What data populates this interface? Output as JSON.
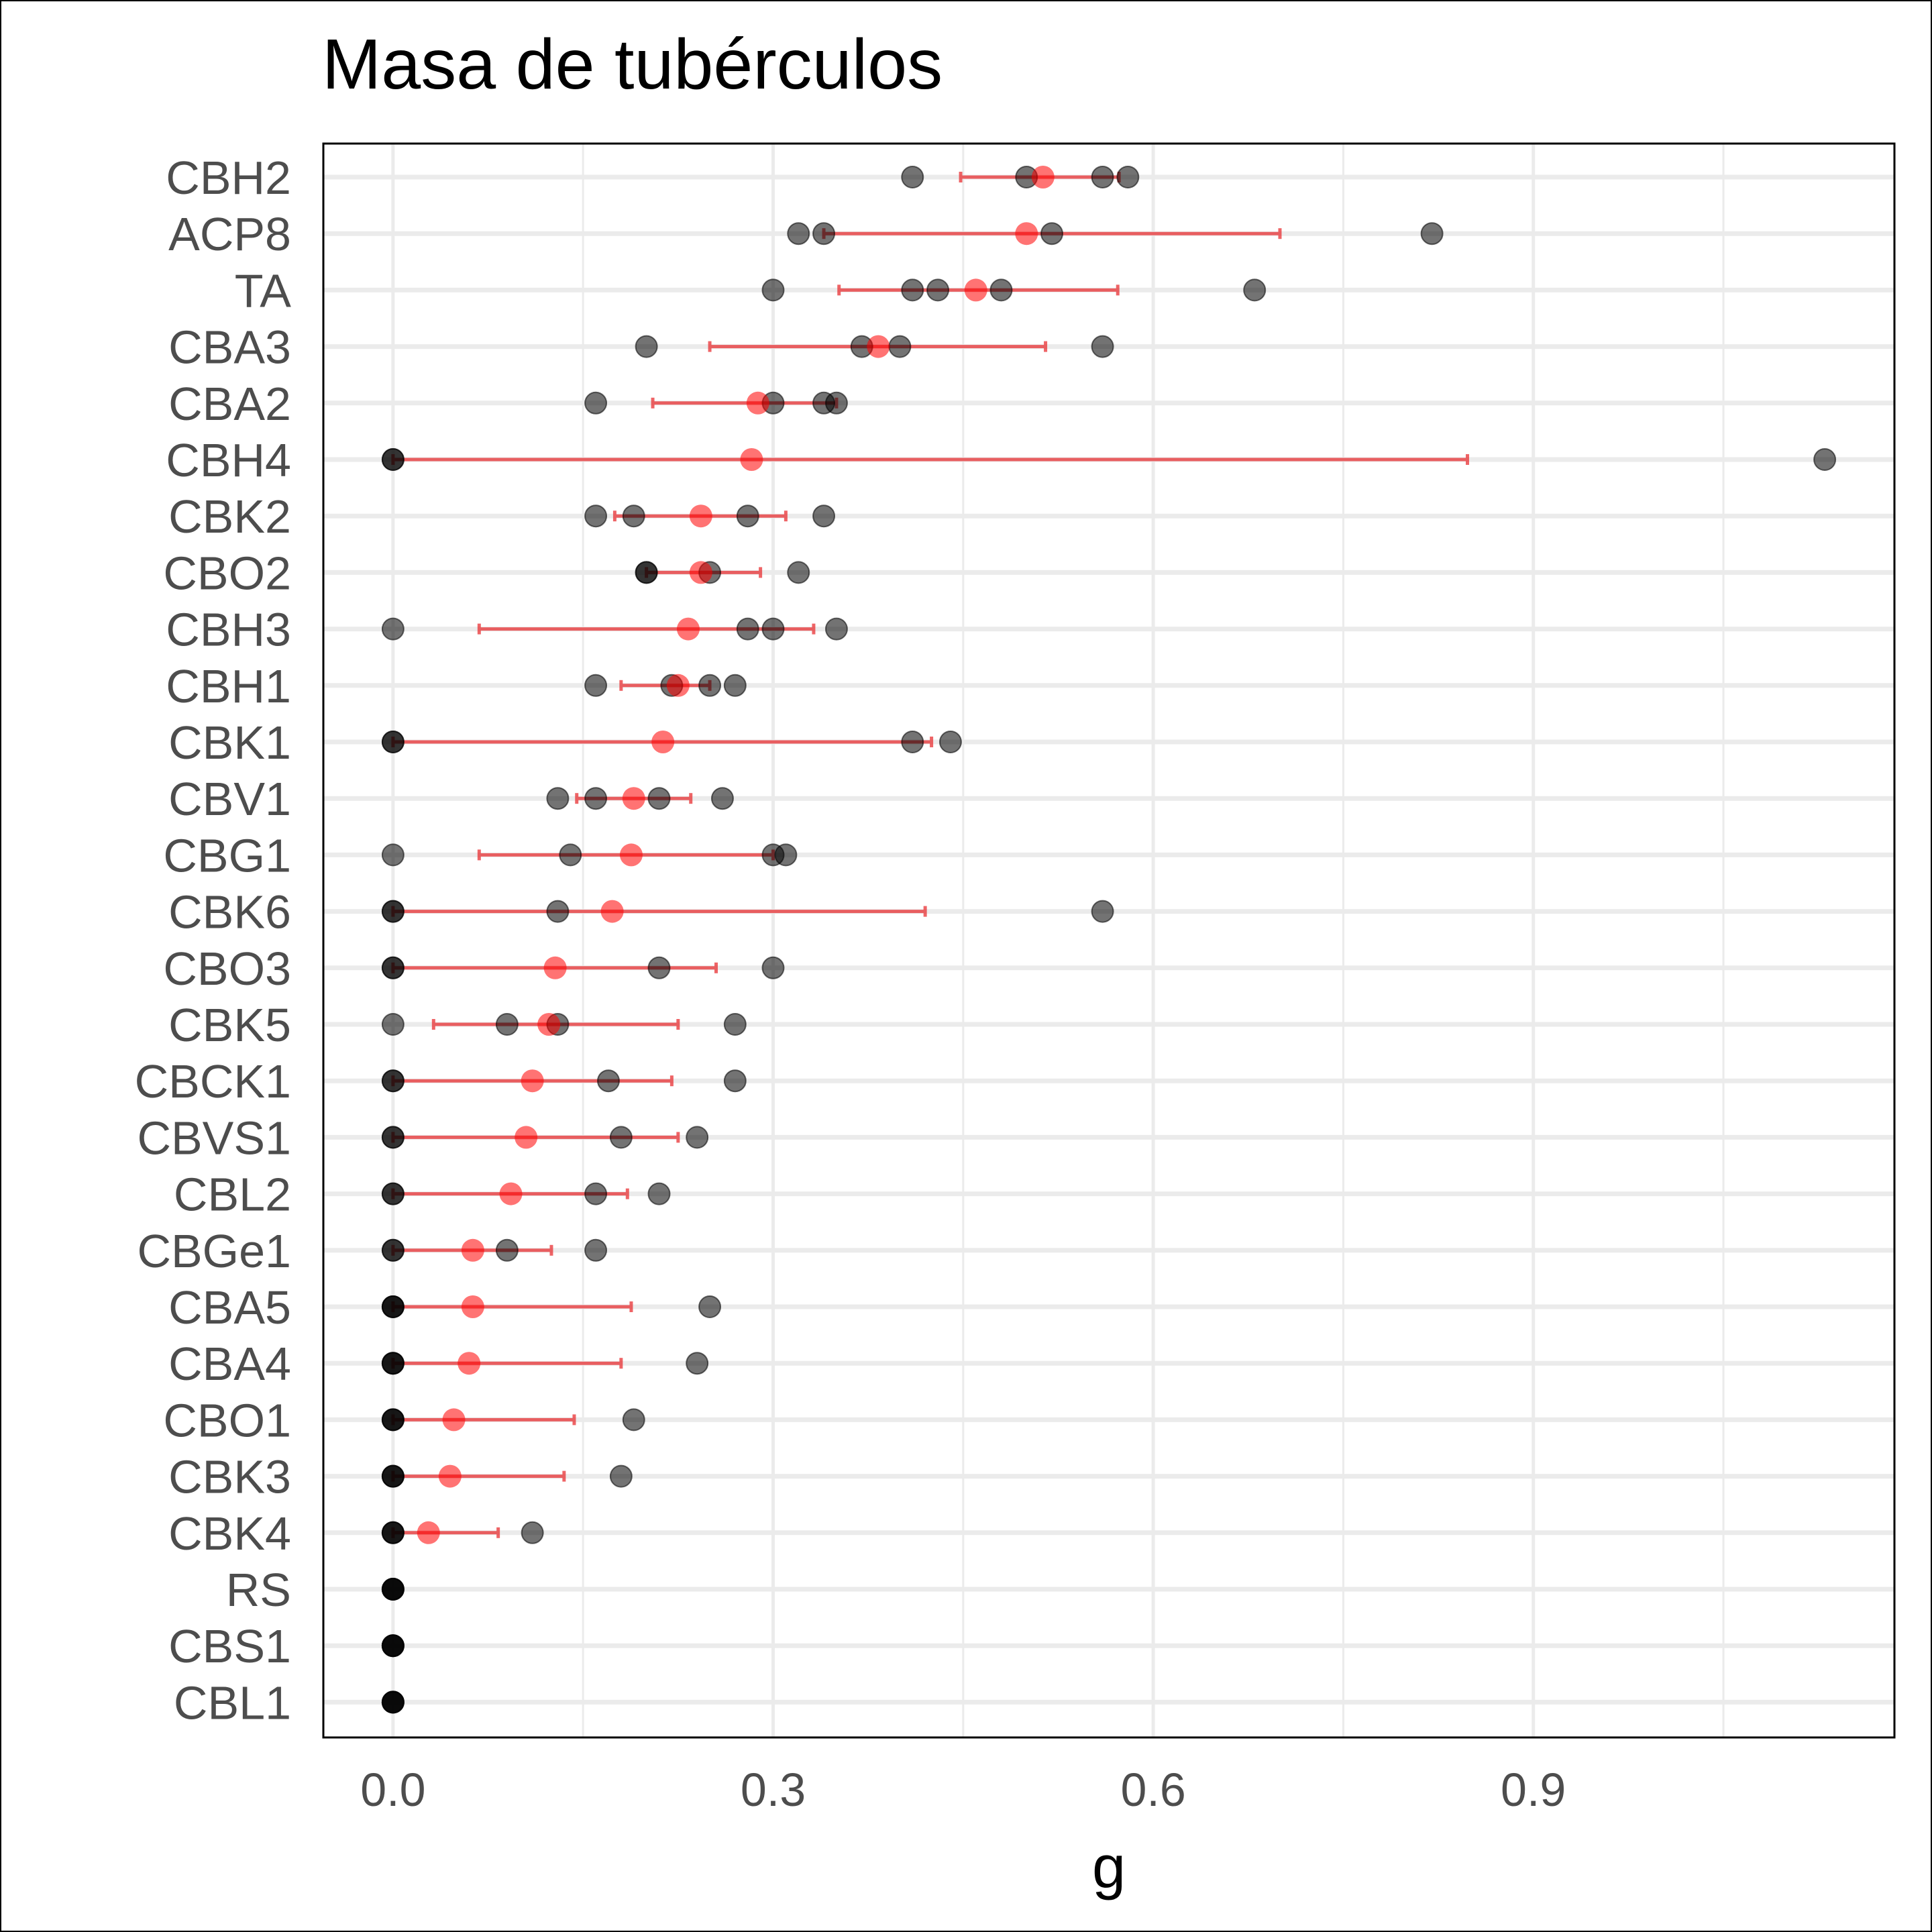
{
  "chart_data": {
    "type": "scatter",
    "title": "Masa de tubérculos",
    "xlabel": "g",
    "ylabel": "",
    "xlim": [
      -0.055,
      1.185
    ],
    "xticks": [
      {
        "value": 0.0,
        "label": "0.0"
      },
      {
        "value": 0.3,
        "label": "0.3"
      },
      {
        "value": 0.6,
        "label": "0.6"
      },
      {
        "value": 0.9,
        "label": "0.9"
      }
    ],
    "minor_grid_x": [
      0.15,
      0.45,
      0.75,
      1.05
    ],
    "grid": true,
    "colors": {
      "observation": "#000000",
      "mean": "#ff0000",
      "error_bar": "#e8292c",
      "grid": "#ebebeb"
    },
    "series": [
      {
        "name": "",
        "kind": "observations"
      },
      {
        "name": "",
        "kind": "mean ± error"
      }
    ],
    "categories": [
      {
        "label": "CBH2",
        "obs": [
          0.41,
          0.5,
          0.56,
          0.58
        ],
        "mean": 0.513,
        "err": [
          0.448,
          0.573
        ]
      },
      {
        "label": "ACP8",
        "obs": [
          0.32,
          0.34,
          0.52,
          0.82
        ],
        "mean": 0.5,
        "err": [
          0.34,
          0.7
        ]
      },
      {
        "label": "TA",
        "obs": [
          0.3,
          0.41,
          0.43,
          0.48,
          0.68
        ],
        "mean": 0.46,
        "err": [
          0.352,
          0.572
        ]
      },
      {
        "label": "CBA3",
        "obs": [
          0.2,
          0.37,
          0.4,
          0.56
        ],
        "mean": 0.383,
        "err": [
          0.25,
          0.515
        ]
      },
      {
        "label": "CBA2",
        "obs": [
          0.16,
          0.3,
          0.34,
          0.35
        ],
        "mean": 0.288,
        "err": [
          0.205,
          0.35
        ]
      },
      {
        "label": "CBH4",
        "obs": [
          0.0,
          0.0,
          1.13
        ],
        "mean": 0.283,
        "err": [
          0.0,
          0.848
        ]
      },
      {
        "label": "CBK2",
        "obs": [
          0.16,
          0.19,
          0.28,
          0.34
        ],
        "mean": 0.243,
        "err": [
          0.175,
          0.31
        ]
      },
      {
        "label": "CBO2",
        "obs": [
          0.2,
          0.2,
          0.25,
          0.32
        ],
        "mean": 0.243,
        "err": [
          0.2,
          0.29
        ]
      },
      {
        "label": "CBH3",
        "obs": [
          0.0,
          0.28,
          0.3,
          0.35
        ],
        "mean": 0.233,
        "err": [
          0.068,
          0.332
        ]
      },
      {
        "label": "CBH1",
        "obs": [
          0.16,
          0.22,
          0.25,
          0.27
        ],
        "mean": 0.225,
        "err": [
          0.18,
          0.25
        ]
      },
      {
        "label": "CBK1",
        "obs": [
          0.0,
          0.0,
          0.41,
          0.44
        ],
        "mean": 0.213,
        "err": [
          0.0,
          0.425
        ]
      },
      {
        "label": "CBV1",
        "obs": [
          0.13,
          0.16,
          0.21,
          0.26
        ],
        "mean": 0.19,
        "err": [
          0.145,
          0.235
        ]
      },
      {
        "label": "CBG1",
        "obs": [
          0.0,
          0.14,
          0.3,
          0.31
        ],
        "mean": 0.188,
        "err": [
          0.068,
          0.3
        ]
      },
      {
        "label": "CBK6",
        "obs": [
          0.0,
          0.0,
          0.13,
          0.56
        ],
        "mean": 0.173,
        "err": [
          0.0,
          0.42
        ]
      },
      {
        "label": "CBO3",
        "obs": [
          0.0,
          0.0,
          0.21,
          0.3
        ],
        "mean": 0.128,
        "err": [
          0.0,
          0.255
        ]
      },
      {
        "label": "CBK5",
        "obs": [
          0.0,
          0.09,
          0.13,
          0.27
        ],
        "mean": 0.123,
        "err": [
          0.032,
          0.225
        ]
      },
      {
        "label": "CBCK1",
        "obs": [
          0.0,
          0.0,
          0.17,
          0.27
        ],
        "mean": 0.11,
        "err": [
          0.0,
          0.22
        ]
      },
      {
        "label": "CBVS1",
        "obs": [
          0.0,
          0.0,
          0.18,
          0.24
        ],
        "mean": 0.105,
        "err": [
          0.0,
          0.225
        ]
      },
      {
        "label": "CBL2",
        "obs": [
          0.0,
          0.0,
          0.16,
          0.21
        ],
        "mean": 0.093,
        "err": [
          0.0,
          0.185
        ]
      },
      {
        "label": "CBGe1",
        "obs": [
          0.0,
          0.0,
          0.09,
          0.16
        ],
        "mean": 0.063,
        "err": [
          0.0,
          0.125
        ]
      },
      {
        "label": "CBA5",
        "obs": [
          0.0,
          0.0,
          0.0,
          0.25
        ],
        "mean": 0.063,
        "err": [
          0.0,
          0.188
        ]
      },
      {
        "label": "CBA4",
        "obs": [
          0.0,
          0.0,
          0.0,
          0.24
        ],
        "mean": 0.06,
        "err": [
          0.0,
          0.18
        ]
      },
      {
        "label": "CBO1",
        "obs": [
          0.0,
          0.0,
          0.0,
          0.19
        ],
        "mean": 0.048,
        "err": [
          0.0,
          0.143
        ]
      },
      {
        "label": "CBK3",
        "obs": [
          0.0,
          0.0,
          0.0,
          0.18
        ],
        "mean": 0.045,
        "err": [
          0.0,
          0.135
        ]
      },
      {
        "label": "CBK4",
        "obs": [
          0.0,
          0.0,
          0.0,
          0.11
        ],
        "mean": 0.028,
        "err": [
          0.0,
          0.083
        ]
      },
      {
        "label": "RS",
        "obs": [
          0.0,
          0.0,
          0.0,
          0.0
        ],
        "mean": null,
        "err": null
      },
      {
        "label": "CBS1",
        "obs": [
          0.0,
          0.0,
          0.0,
          0.0
        ],
        "mean": null,
        "err": null
      },
      {
        "label": "CBL1",
        "obs": [
          0.0,
          0.0,
          0.0,
          0.0
        ],
        "mean": null,
        "err": null
      }
    ]
  }
}
